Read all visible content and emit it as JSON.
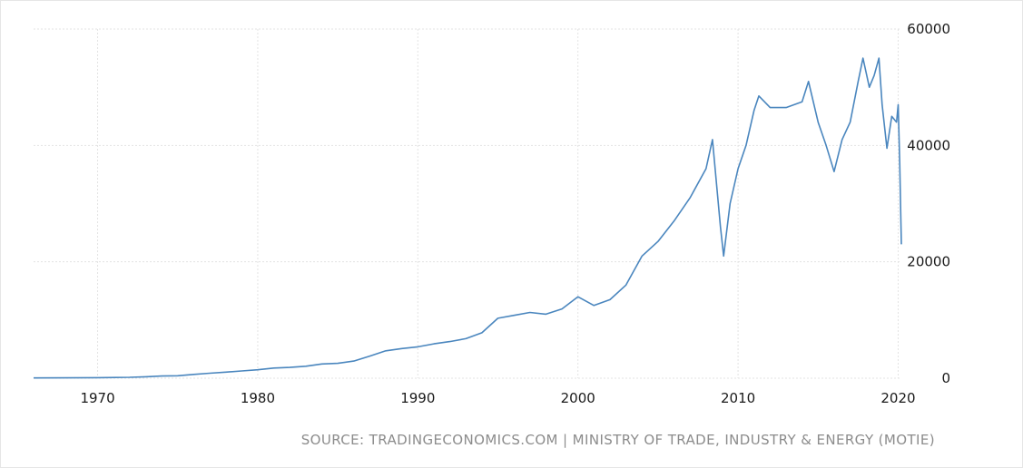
{
  "chart_data": {
    "type": "line",
    "title": "",
    "xlabel": "",
    "ylabel": "",
    "xlim": [
      1966,
      2020.2
    ],
    "ylim": [
      0,
      60000
    ],
    "x_ticks": [
      "1970",
      "1980",
      "1990",
      "2000",
      "2010",
      "2020"
    ],
    "y_ticks": [
      "0",
      "20000",
      "40000",
      "60000"
    ],
    "grid": true,
    "y_axis_side": "right",
    "line_color": "#4a86be",
    "series": [
      {
        "points": [
          [
            1966.0,
            40
          ],
          [
            1968.0,
            60
          ],
          [
            1970.0,
            90
          ],
          [
            1972.0,
            150
          ],
          [
            1973.0,
            250
          ],
          [
            1974.0,
            380
          ],
          [
            1975.0,
            420
          ],
          [
            1976.0,
            650
          ],
          [
            1977.0,
            850
          ],
          [
            1978.0,
            1050
          ],
          [
            1979.0,
            1250
          ],
          [
            1980.0,
            1450
          ],
          [
            1981.0,
            1750
          ],
          [
            1982.0,
            1850
          ],
          [
            1983.0,
            2050
          ],
          [
            1984.0,
            2450
          ],
          [
            1985.0,
            2550
          ],
          [
            1986.0,
            2950
          ],
          [
            1987.0,
            3800
          ],
          [
            1988.0,
            4700
          ],
          [
            1989.0,
            5100
          ],
          [
            1990.0,
            5400
          ],
          [
            1991.0,
            5900
          ],
          [
            1992.0,
            6300
          ],
          [
            1993.0,
            6800
          ],
          [
            1994.0,
            7800
          ],
          [
            1995.0,
            10300
          ],
          [
            1996.0,
            10800
          ],
          [
            1997.0,
            11300
          ],
          [
            1998.0,
            11000
          ],
          [
            1999.0,
            11900
          ],
          [
            2000.0,
            14000
          ],
          [
            2001.0,
            12500
          ],
          [
            2002.0,
            13500
          ],
          [
            2003.0,
            16000
          ],
          [
            2004.0,
            21000
          ],
          [
            2005.0,
            23500
          ],
          [
            2006.0,
            27000
          ],
          [
            2007.0,
            31000
          ],
          [
            2008.0,
            36000
          ],
          [
            2008.4,
            41000
          ],
          [
            2008.9,
            26000
          ],
          [
            2009.1,
            21000
          ],
          [
            2009.5,
            30000
          ],
          [
            2010.0,
            36000
          ],
          [
            2010.5,
            40000
          ],
          [
            2011.0,
            46000
          ],
          [
            2011.3,
            48500
          ],
          [
            2012.0,
            46500
          ],
          [
            2013.0,
            46500
          ],
          [
            2014.0,
            47500
          ],
          [
            2014.4,
            51000
          ],
          [
            2015.0,
            44000
          ],
          [
            2015.5,
            40000
          ],
          [
            2016.0,
            35500
          ],
          [
            2016.5,
            41000
          ],
          [
            2017.0,
            44000
          ],
          [
            2017.5,
            51000
          ],
          [
            2017.8,
            55000
          ],
          [
            2018.2,
            50000
          ],
          [
            2018.5,
            52000
          ],
          [
            2018.8,
            55000
          ],
          [
            2019.0,
            47000
          ],
          [
            2019.3,
            39500
          ],
          [
            2019.6,
            45000
          ],
          [
            2019.9,
            44000
          ],
          [
            2020.0,
            47000
          ],
          [
            2020.1,
            37000
          ],
          [
            2020.2,
            23000
          ]
        ]
      }
    ]
  },
  "source": "SOURCE: TRADINGECONOMICS.COM | MINISTRY OF TRADE, INDUSTRY & ENERGY (MOTIE)"
}
